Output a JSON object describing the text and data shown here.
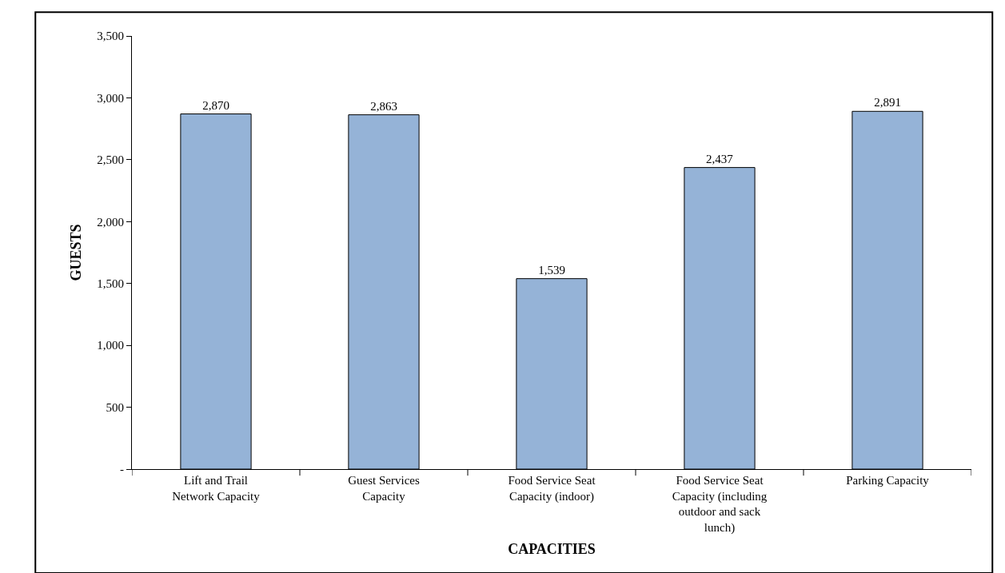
{
  "chart_data": {
    "type": "bar",
    "xlabel": "CAPACITIES",
    "ylabel": "GUESTS",
    "categories": [
      "Lift and Trail Network Capacity",
      "Guest Services Capacity",
      "Food Service Seat Capacity (indoor)",
      "Food Service Seat Capacity (including outdoor and sack lunch)",
      "Parking Capacity"
    ],
    "values": [
      2870,
      2863,
      1539,
      2437,
      2891
    ],
    "value_labels": [
      "2,870",
      "2,863",
      "1,539",
      "2,437",
      "2,891"
    ],
    "color": "#95b3d7",
    "ylim": [
      0,
      3500
    ],
    "yticks": [
      {
        "value": 0,
        "label": "-"
      },
      500,
      {
        "value": 1000,
        "label": "1,000"
      },
      {
        "value": 1500,
        "label": "1,500"
      },
      {
        "value": 2000,
        "label": "2,000"
      },
      {
        "value": 2500,
        "label": "2,500"
      },
      {
        "value": 3000,
        "label": "3,000"
      },
      {
        "value": 3500,
        "label": "3,500"
      }
    ],
    "legend": false
  }
}
